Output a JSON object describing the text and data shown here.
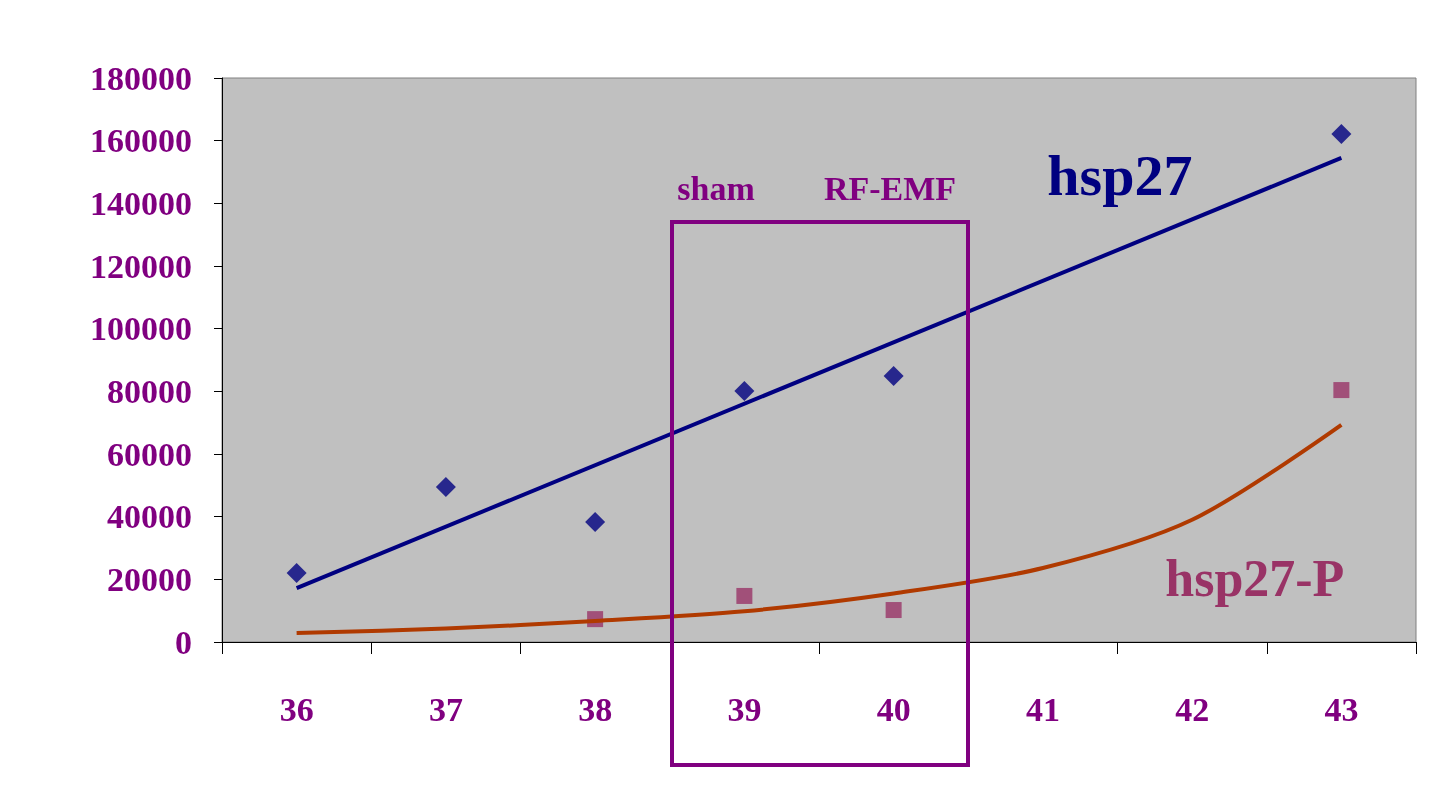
{
  "chart_data": {
    "type": "scatter",
    "categories": [
      "36",
      "37",
      "38",
      "39",
      "40",
      "41",
      "42",
      "43"
    ],
    "ylim": [
      0,
      180000
    ],
    "yticks": [
      0,
      20000,
      40000,
      60000,
      80000,
      100000,
      120000,
      140000,
      160000,
      180000
    ],
    "grid": false,
    "legend": false,
    "series": [
      {
        "name": "hsp27",
        "color": "#000080",
        "marker": "diamond",
        "values": [
          22000,
          49500,
          38300,
          80100,
          84900,
          null,
          null,
          162100
        ]
      },
      {
        "name": "hsp27-P",
        "color": "#993366",
        "marker": "square",
        "values": [
          null,
          null,
          7300,
          14700,
          10200,
          null,
          null,
          80400
        ]
      },
      {
        "type": "line",
        "color": "#000080",
        "marker": "none",
        "x": [
          "36",
          "43"
        ],
        "values": [
          17200,
          154500
        ]
      },
      {
        "type": "line",
        "color": "#b03a00",
        "marker": "none",
        "values": [
          2900,
          4300,
          6700,
          9800,
          15500,
          23600,
          39000,
          69300
        ]
      }
    ],
    "annotations": [
      "sham",
      "RF-EMF"
    ]
  }
}
